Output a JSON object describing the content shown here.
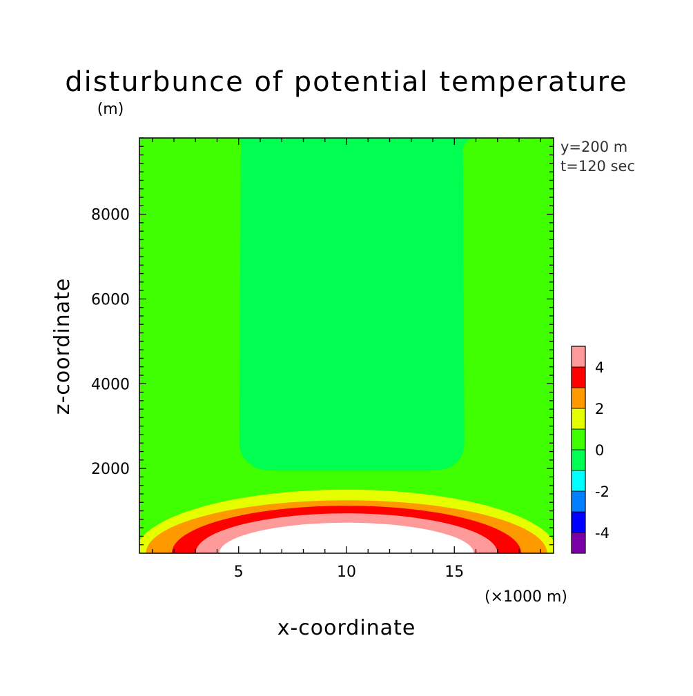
{
  "chart_data": {
    "type": "contour",
    "title": "disturbunce of potential temperature",
    "unit_label": "(m)",
    "xlabel": "x-coordinate",
    "ylabel": "z-coordinate",
    "x_unit": "(×1000 m)",
    "xlim": [
      0.4,
      19.6
    ],
    "ylim": [
      0,
      9800
    ],
    "x_ticks": [
      5,
      10,
      15
    ],
    "y_ticks": [
      2000,
      4000,
      6000,
      8000
    ],
    "annotations": [
      "y=200 m",
      "t=120 sec"
    ],
    "colorbar": {
      "levels": [
        -5,
        -4,
        -3,
        -2,
        -1,
        0,
        1,
        2,
        3,
        4,
        5
      ],
      "labels": [
        "-4",
        "-2",
        "0",
        "2",
        "4"
      ],
      "label_values": [
        -4,
        -2,
        0,
        2,
        4
      ],
      "colors": [
        "#7b00a8",
        "#0000ff",
        "#0080ff",
        "#00ffff",
        "#00ff50",
        "#40ff00",
        "#e6ff00",
        "#ff9900",
        "#ff0000",
        "#ff9a9a"
      ]
    },
    "regions": [
      {
        "range": [
          0,
          1
        ],
        "color": "#40ff00",
        "shape": "background"
      },
      {
        "range": [
          -1,
          0
        ],
        "color": "#00ff50",
        "shape": "column",
        "x": [
          5.1,
          15.4
        ],
        "z": [
          1950,
          9800
        ]
      },
      {
        "range": [
          1,
          2
        ],
        "color": "#e6ff00",
        "shape": "dome",
        "x_center": 10,
        "z_top": 1500,
        "x_half_width": 9.8
      },
      {
        "range": [
          2,
          3
        ],
        "color": "#ff9900",
        "shape": "dome",
        "x_center": 10,
        "z_top": 1250,
        "x_half_width": 9.3
      },
      {
        "range": [
          3,
          4
        ],
        "color": "#ff0000",
        "shape": "dome",
        "x_center": 10,
        "z_top": 1120,
        "x_half_width": 8.1
      },
      {
        "range": [
          4,
          5
        ],
        "color": "#ff9a9a",
        "shape": "dome",
        "x_center": 10,
        "z_top": 940,
        "x_half_width": 7.0
      },
      {
        "range": [
          5,
          null
        ],
        "color": "#ffffff",
        "shape": "dome",
        "x_center": 10,
        "z_top": 720,
        "x_half_width": 5.9
      }
    ]
  }
}
